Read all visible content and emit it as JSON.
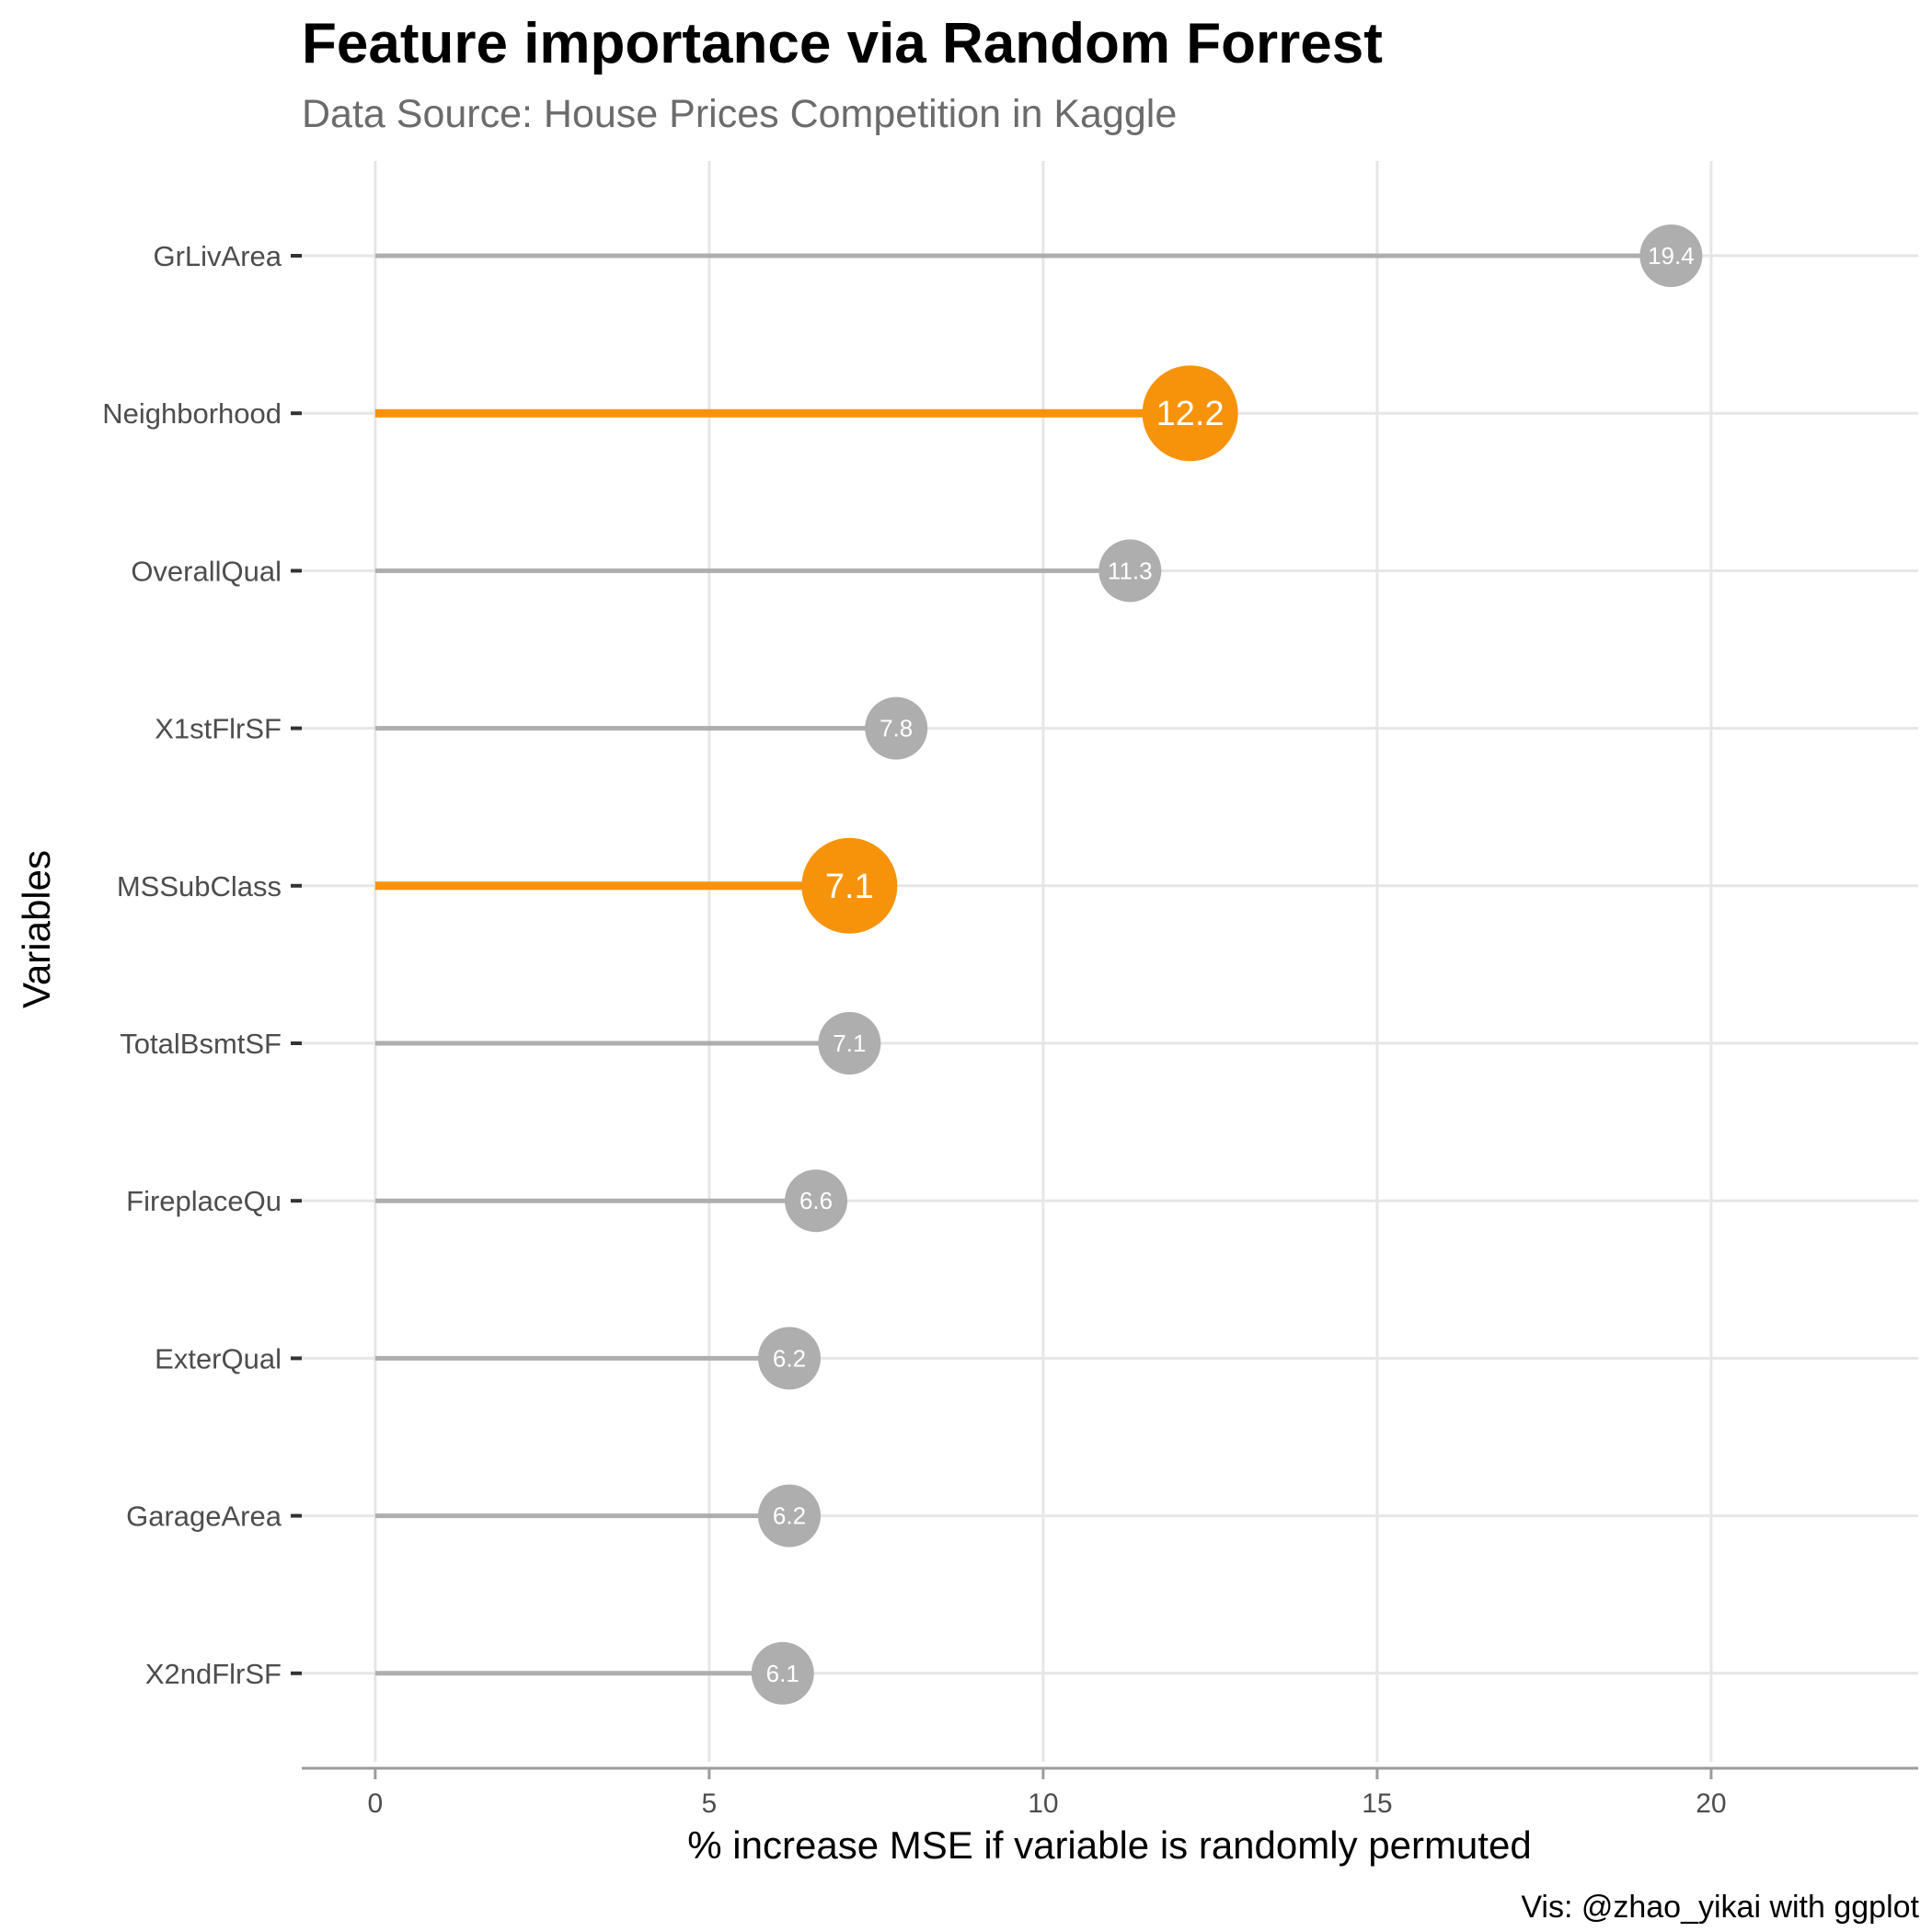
{
  "chart_data": {
    "type": "lollipop",
    "title": "Feature importance via Random Forrest",
    "subtitle": "Data Source: House Prices Competition in Kaggle",
    "xlabel": "% increase MSE if variable is randomly permuted",
    "ylabel": "Variables",
    "caption": "Vis: @zhao_yikai with ggplot",
    "xlim": [
      -1.1,
      23.1
    ],
    "x_ticks": [
      0,
      5,
      10,
      15,
      20
    ],
    "grid": true,
    "legend": "none",
    "colors": {
      "highlight": "#F7930B",
      "normal": "#AEAEAE",
      "grid": "#E6E6E6",
      "axis": "#9C9C9C"
    },
    "categories": [
      "GrLivArea",
      "Neighborhood",
      "OverallQual",
      "X1stFlrSF",
      "MSSubClass",
      "TotalBsmtSF",
      "FireplaceQu",
      "ExterQual",
      "GarageArea",
      "X2ndFlrSF"
    ],
    "values": [
      19.4,
      12.2,
      11.3,
      7.8,
      7.1,
      7.1,
      6.6,
      6.2,
      6.2,
      6.1
    ],
    "labels": [
      "19.4",
      "12.2",
      "11.3",
      "7.8",
      "7.1",
      "7.1",
      "6.6",
      "6.2",
      "6.2",
      "6.1"
    ],
    "highlighted": [
      "Neighborhood",
      "MSSubClass"
    ]
  }
}
